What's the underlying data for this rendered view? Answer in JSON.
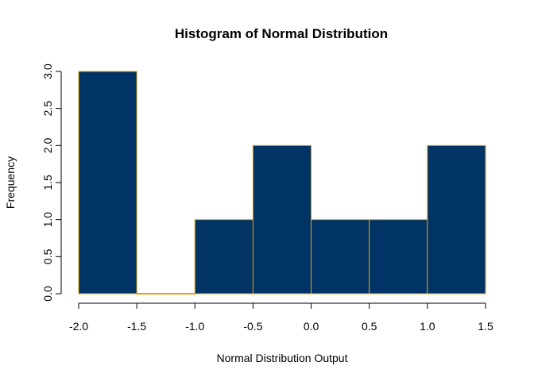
{
  "chart_data": {
    "type": "bar",
    "title": "Histogram of Normal Distribution",
    "xlabel": "Normal Distribution Output",
    "ylabel": "Frequency",
    "bins": [
      {
        "from": -2.0,
        "to": -1.5,
        "count": 3
      },
      {
        "from": -1.5,
        "to": -1.0,
        "count": 0
      },
      {
        "from": -1.0,
        "to": -0.5,
        "count": 1
      },
      {
        "from": -0.5,
        "to": 0.0,
        "count": 2
      },
      {
        "from": 0.0,
        "to": 0.5,
        "count": 1
      },
      {
        "from": 0.5,
        "to": 1.0,
        "count": 1
      },
      {
        "from": 1.0,
        "to": 1.5,
        "count": 2
      }
    ],
    "xlim": [
      -2.0,
      1.5
    ],
    "ylim": [
      0,
      3
    ],
    "x_ticks": [
      "-2.0",
      "-1.5",
      "-1.0",
      "-0.5",
      "0.0",
      "0.5",
      "1.0",
      "1.5"
    ],
    "y_ticks": [
      "0.0",
      "0.5",
      "1.0",
      "1.5",
      "2.0",
      "2.5",
      "3.0"
    ],
    "grid": false,
    "bar_fill_color": "#003366",
    "bar_border_color": "#E69F00"
  }
}
